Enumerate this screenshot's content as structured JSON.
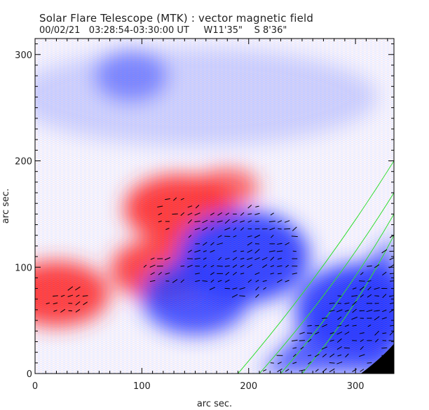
{
  "title": "Solar Flare Telescope (MTK) : vector magnetic field",
  "subtitle": {
    "date": "00/02/21",
    "time_range": "03:28:54-03:30:00 UT",
    "lon": "W11'35\"",
    "lat": "S 8'36\""
  },
  "axes": {
    "xlabel": "arc sec.",
    "ylabel": "arc sec.",
    "xlim": [
      0,
      336
    ],
    "ylim": [
      0,
      315
    ],
    "xticks": [
      "0",
      "100",
      "200",
      "300"
    ],
    "yticks": [
      "0",
      "100",
      "200",
      "300"
    ],
    "xtick_values": [
      0,
      100,
      200,
      300
    ],
    "ytick_values": [
      0,
      100,
      200,
      300
    ]
  },
  "colors": {
    "positive_polarity": "#ff3030",
    "negative_polarity": "#2838ff",
    "background": "#ffffff",
    "contour": "#33dd33",
    "vectors": "#000000",
    "limb": "#000000"
  },
  "regions": {
    "positive": [
      {
        "x": 135,
        "y": 155,
        "strength": 1.0
      },
      {
        "x": 118,
        "y": 98,
        "strength": 0.9
      },
      {
        "x": 20,
        "y": 75,
        "strength": 0.95
      },
      {
        "x": 180,
        "y": 175,
        "strength": 0.5
      }
    ],
    "negative": [
      {
        "x": 195,
        "y": 110,
        "strength": 1.0
      },
      {
        "x": 150,
        "y": 72,
        "strength": 0.8
      },
      {
        "x": 305,
        "y": 60,
        "strength": 1.0
      },
      {
        "x": 90,
        "y": 280,
        "strength": 0.5
      }
    ]
  }
}
